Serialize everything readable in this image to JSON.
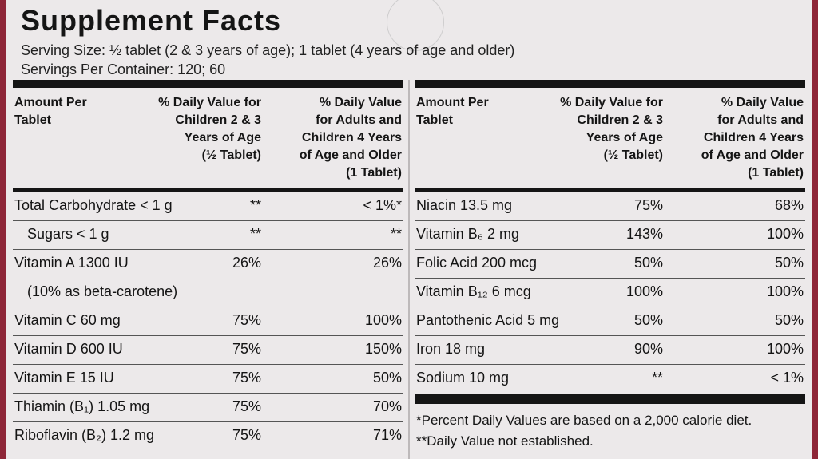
{
  "title": "Supplement Facts",
  "serving_size": "Serving Size: ½ tablet (2 & 3 years of age); 1 tablet (4 years of age and older)",
  "servings_per_container": "Servings Per Container: 120; 60",
  "headers": {
    "amount": [
      "Amount Per",
      "Tablet"
    ],
    "children": [
      "% Daily Value for",
      "Children 2 & 3",
      "Years of Age",
      "(½ Tablet)"
    ],
    "adults": [
      "% Daily Value",
      "for Adults and",
      "Children 4 Years",
      "of Age and Older",
      "(1 Tablet)"
    ]
  },
  "left_rows": [
    {
      "name": "Total Carbohydrate < 1 g",
      "children": "**",
      "adults": "< 1%*"
    },
    {
      "name": "Sugars < 1 g",
      "children": "**",
      "adults": "**"
    },
    {
      "name": "Vitamin A 1300 IU",
      "sub": "(10% as beta-carotene)",
      "children": "26%",
      "adults": "26%"
    },
    {
      "name": "Vitamin C 60 mg",
      "children": "75%",
      "adults": "100%"
    },
    {
      "name": "Vitamin D 600 IU",
      "children": "75%",
      "adults": "150%"
    },
    {
      "name": "Vitamin E 15 IU",
      "children": "75%",
      "adults": "50%"
    },
    {
      "name": "Thiamin (B₁) 1.05 mg",
      "children": "75%",
      "adults": "70%"
    },
    {
      "name": "Riboflavin (B₂) 1.2 mg",
      "children": "75%",
      "adults": "71%"
    }
  ],
  "right_rows": [
    {
      "name": "Niacin 13.5 mg",
      "children": "75%",
      "adults": "68%"
    },
    {
      "name": "Vitamin B₆ 2 mg",
      "children": "143%",
      "adults": "100%"
    },
    {
      "name": "Folic Acid 200 mcg",
      "children": "50%",
      "adults": "50%"
    },
    {
      "name": "Vitamin B₁₂ 6 mcg",
      "children": "100%",
      "adults": "100%"
    },
    {
      "name": "Pantothenic Acid 5 mg",
      "children": "50%",
      "adults": "50%"
    },
    {
      "name": "Iron 18 mg",
      "children": "90%",
      "adults": "100%"
    },
    {
      "name": "Sodium 10 mg",
      "children": "**",
      "adults": "< 1%"
    }
  ],
  "footnotes": [
    "*Percent Daily Values are based on a 2,000 calorie diet.",
    "**Daily Value not established."
  ]
}
